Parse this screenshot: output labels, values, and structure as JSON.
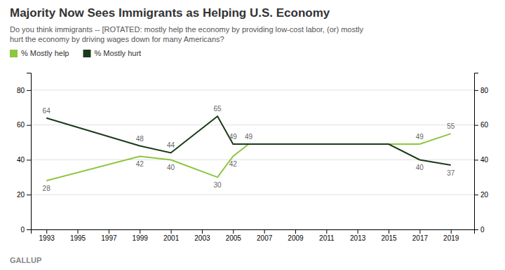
{
  "chart_data": {
    "type": "line",
    "title": "Majority Now Sees Immigrants as Helping U.S. Economy",
    "subtitle": [
      "Do you think immigrants -- [ROTATED: mostly help the economy by providing low-cost labor, (or) mostly",
      "hurt the economy by driving wages down for many Americans?"
    ],
    "source": "GALLUP",
    "x": [
      1993,
      1999,
      2001,
      2004,
      2005,
      2006,
      2009,
      2011,
      2013,
      2015,
      2017,
      2019
    ],
    "series": [
      {
        "name": "% Mostly help",
        "color": "#8dc63f",
        "values": [
          28,
          42,
          40,
          30,
          42,
          49,
          49,
          49,
          49,
          49,
          49,
          55
        ]
      },
      {
        "name": "% Mostly hurt",
        "color": "#1a3a1a",
        "values": [
          64,
          48,
          44,
          65,
          49,
          49,
          49,
          49,
          49,
          49,
          40,
          37
        ]
      }
    ],
    "annotations": [
      {
        "x": 1993,
        "y": 28,
        "text": "28"
      },
      {
        "x": 1999,
        "y": 42,
        "text": "42"
      },
      {
        "x": 2001,
        "y": 40,
        "text": "40"
      },
      {
        "x": 2004,
        "y": 30,
        "text": "30"
      },
      {
        "x": 2005,
        "y": 42,
        "text": "42"
      },
      {
        "x": 2006,
        "y": 49,
        "text": "49"
      },
      {
        "x": 2017,
        "y": 49,
        "text": "49"
      },
      {
        "x": 2019,
        "y": 55,
        "text": "55"
      },
      {
        "x": 1993,
        "y": 64,
        "text": "64"
      },
      {
        "x": 1999,
        "y": 48,
        "text": "48"
      },
      {
        "x": 2001,
        "y": 44,
        "text": "44"
      },
      {
        "x": 2004,
        "y": 65,
        "text": "65"
      },
      {
        "x": 2005,
        "y": 49,
        "text": "49"
      },
      {
        "x": 2017,
        "y": 40,
        "text": "40"
      },
      {
        "x": 2019,
        "y": 37,
        "text": "37"
      }
    ],
    "xlim": [
      1992.0,
      2020.5
    ],
    "xticks": [
      1993,
      1995,
      1997,
      1999,
      2001,
      2003,
      2005,
      2007,
      2009,
      2011,
      2013,
      2015,
      2017,
      2019
    ],
    "ylim": [
      0,
      90
    ],
    "yticks": [
      0,
      20,
      40,
      60,
      80
    ],
    "y2lim": [
      0,
      90
    ],
    "y2ticks": [
      0,
      20,
      40,
      60,
      80
    ],
    "grid": true,
    "legend": "top"
  }
}
